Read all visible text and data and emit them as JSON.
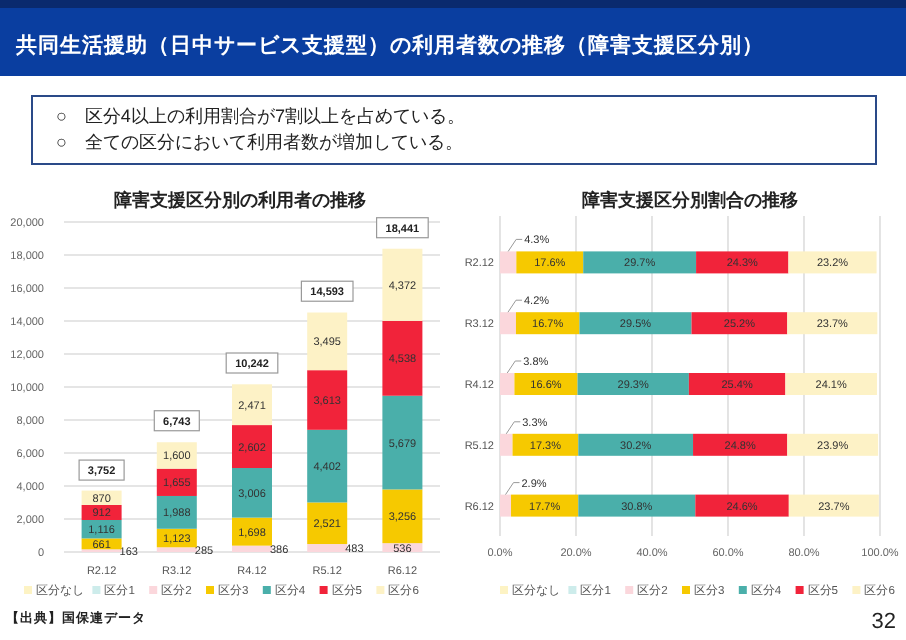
{
  "chart_data": [
    {
      "type": "bar",
      "title": "障害支援区分別の利用者の推移",
      "stacked": true,
      "annotations": [
        "共同生活援助（日中サービス支援型）の利用者数の推移（障害支援区分別）",
        "○　区分4以上の利用割合が7割以上を占めている。",
        "○　全ての区分において利用者数が増加している。",
        "【出典】国保連データ",
        {
          "text": "3,752",
          "x": "R2.12",
          "y": 3752
        },
        {
          "text": "6,743",
          "x": "R3.12",
          "y": 6743
        },
        {
          "text": "10,242",
          "x": "R4.12",
          "y": 10242
        },
        {
          "text": "14,593",
          "x": "R5.12",
          "y": 14593
        },
        {
          "text": "18,441",
          "x": "R6.12",
          "y": 18441
        }
      ],
      "data_labels": true,
      "categories": [
        "R2.12",
        "R3.12",
        "R4.12",
        "R5.12",
        "R6.12"
      ],
      "series": [
        {
          "name": "区分なし",
          "color": "#fdf3c4",
          "values": [
            null,
            null,
            null,
            null,
            null
          ]
        },
        {
          "name": "区分1",
          "color": "#cdeceb",
          "values": [
            null,
            null,
            null,
            null,
            null
          ]
        },
        {
          "name": "区分2",
          "color": "#fbd7dc",
          "values": [
            163,
            285,
            386,
            483,
            536
          ],
          "value_labels": [
            "163",
            "285",
            "386",
            "483",
            "536"
          ]
        },
        {
          "name": "区分3",
          "color": "#f6c900",
          "values": [
            661,
            1123,
            1698,
            2521,
            3256
          ],
          "value_labels": [
            "661",
            "1,123",
            "1,698",
            "2,521",
            "3,256"
          ]
        },
        {
          "name": "区分4",
          "color": "#4aafaa",
          "values": [
            1116,
            1988,
            3006,
            4402,
            5679
          ],
          "value_labels": [
            "1,116",
            "1,988",
            "3,006",
            "4,402",
            "5,679"
          ]
        },
        {
          "name": "区分5",
          "color": "#f1233a",
          "values": [
            912,
            1655,
            2602,
            3613,
            4538
          ],
          "value_labels": [
            "912",
            "1,655",
            "2,602",
            "3,613",
            "4,538"
          ]
        },
        {
          "name": "区分6",
          "color": "#fdf2c6",
          "values": [
            870,
            1600,
            2471,
            3495,
            4372
          ],
          "value_labels": [
            "870",
            "1,600",
            "2,471",
            "3,495",
            "4,372"
          ]
        }
      ],
      "ylim": [
        0,
        20000
      ],
      "yticks": [
        0,
        {
          "value": 2000,
          "label": "2,000"
        },
        {
          "value": 4000,
          "label": "4,000"
        },
        {
          "value": 6000,
          "label": "6,000"
        },
        {
          "value": 8000,
          "label": "8,000"
        },
        {
          "value": 10000,
          "label": "10,000"
        },
        {
          "value": 12000,
          "label": "12,000"
        },
        {
          "value": 14000,
          "label": "14,000"
        },
        {
          "value": 16000,
          "label": "16,000"
        },
        {
          "value": 18000,
          "label": "18,000"
        },
        {
          "value": 20000,
          "label": "20,000"
        }
      ],
      "grid": "y",
      "legend": "bottom"
    },
    {
      "type": "bar",
      "title": "障害支援区分別割合の推移",
      "stacked": true,
      "orientation": "horizontal",
      "annotations": [
        "32"
      ],
      "data_labels": true,
      "categories": [
        "R2.12",
        "R3.12",
        "R4.12",
        "R5.12",
        "R6.12"
      ],
      "series": [
        {
          "name": "区分なし",
          "color": "#fdf3c4",
          "values": [
            null,
            null,
            null,
            null,
            null
          ]
        },
        {
          "name": "区分1",
          "color": "#cdeceb",
          "values": [
            null,
            null,
            null,
            null,
            null
          ]
        },
        {
          "name": "区分2",
          "color": "#fbd7dc",
          "values": [
            4.3,
            4.2,
            3.8,
            3.3,
            2.9
          ],
          "value_labels": [
            "4.3%",
            "4.2%",
            "3.8%",
            "3.3%",
            "2.9%"
          ]
        },
        {
          "name": "区分3",
          "color": "#f6c900",
          "values": [
            17.6,
            16.7,
            16.6,
            17.3,
            17.7
          ],
          "value_labels": [
            "17.6%",
            "16.7%",
            "16.6%",
            "17.3%",
            "17.7%"
          ]
        },
        {
          "name": "区分4",
          "color": "#4aafaa",
          "values": [
            29.7,
            29.5,
            29.3,
            30.2,
            30.8
          ],
          "value_labels": [
            "29.7%",
            "29.5%",
            "29.3%",
            "30.2%",
            "30.8%"
          ]
        },
        {
          "name": "区分5",
          "color": "#f1233a",
          "values": [
            24.3,
            25.2,
            25.4,
            24.8,
            24.6
          ],
          "value_labels": [
            "24.3%",
            "25.2%",
            "25.4%",
            "24.8%",
            "24.6%"
          ]
        },
        {
          "name": "区分6",
          "color": "#fdf2c6",
          "values": [
            23.2,
            23.7,
            24.1,
            23.9,
            23.7
          ],
          "value_labels": [
            "23.2%",
            "23.7%",
            "24.1%",
            "23.9%",
            "23.7%"
          ]
        }
      ],
      "xlim": [
        0,
        100
      ],
      "xticks": [
        {
          "value": 0,
          "label": "0.0%"
        },
        {
          "value": 20,
          "label": "20.0%"
        },
        {
          "value": 40,
          "label": "40.0%"
        },
        {
          "value": 60,
          "label": "60.0%"
        },
        {
          "value": 80,
          "label": "80.0%"
        },
        {
          "value": 100,
          "label": "100.0%"
        }
      ],
      "grid": "x",
      "legend": "bottom"
    }
  ]
}
